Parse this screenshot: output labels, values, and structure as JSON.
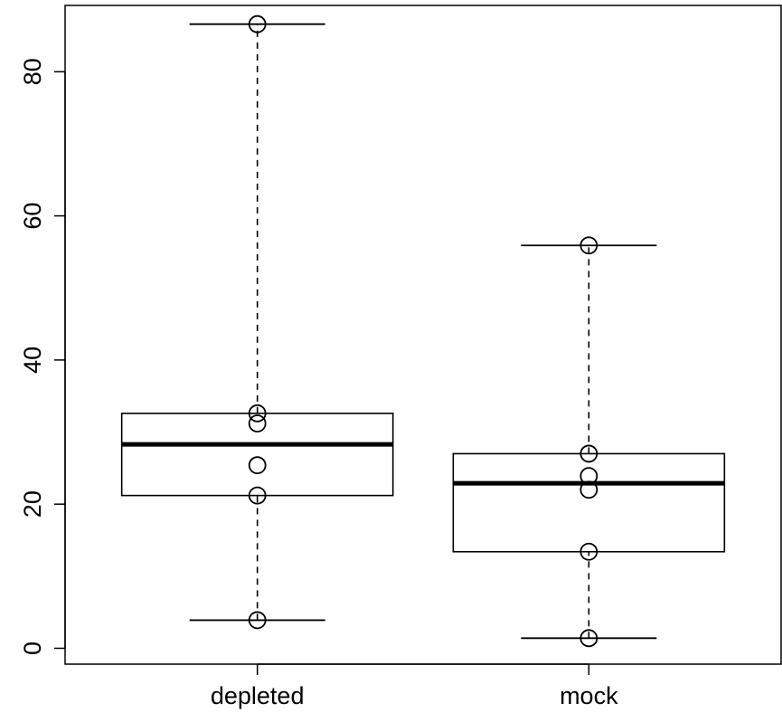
{
  "chart_data": {
    "type": "box",
    "title": "",
    "xlabel": "",
    "ylabel": "",
    "ylim": [
      -2.2,
      89.2
    ],
    "yticks": [
      0,
      20,
      40,
      60,
      80
    ],
    "categories": [
      "depleted",
      "mock"
    ],
    "boxes": [
      {
        "category": "depleted",
        "min": 3.9,
        "q1": 21.2,
        "median": 28.3,
        "q3": 32.6,
        "max": 86.6
      },
      {
        "category": "mock",
        "min": 1.4,
        "q1": 13.4,
        "median": 22.9,
        "q3": 27.0,
        "max": 55.9
      }
    ],
    "points": [
      {
        "category": "depleted",
        "values": [
          86.6,
          32.6,
          31.2,
          25.4,
          21.2,
          3.9
        ]
      },
      {
        "category": "mock",
        "values": [
          55.9,
          27.0,
          23.9,
          22.0,
          13.4,
          1.4
        ]
      }
    ]
  }
}
